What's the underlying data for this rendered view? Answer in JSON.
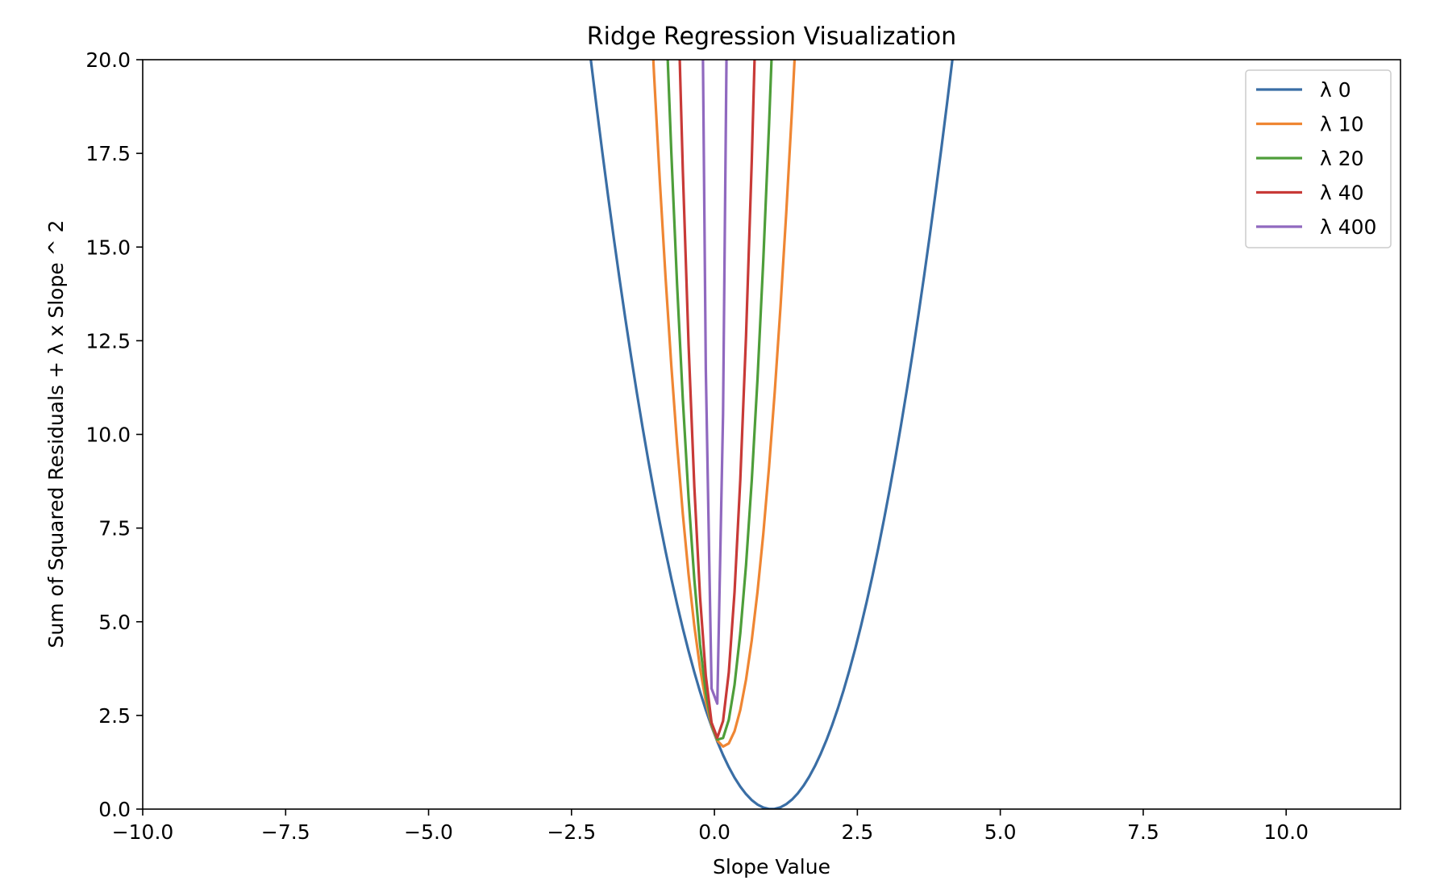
{
  "chart_data": {
    "type": "line",
    "title": "Ridge Regression Visualization",
    "xlabel": "Slope Value",
    "ylabel": "Sum of Squared Residuals + λ x Slope ^ 2",
    "xlim": [
      -10,
      12
    ],
    "ylim": [
      0,
      20
    ],
    "x_ticks": [
      -10,
      -7.5,
      -5,
      -2.5,
      0,
      2.5,
      5,
      7.5,
      10
    ],
    "x_tick_labels": [
      "−10.0",
      "−7.5",
      "−5.0",
      "−2.5",
      "0.0",
      "2.5",
      "5.0",
      "7.5",
      "10.0"
    ],
    "y_ticks": [
      0,
      2.5,
      5,
      7.5,
      10,
      12.5,
      15,
      17.5,
      20
    ],
    "y_tick_labels": [
      "0.0",
      "2.5",
      "5.0",
      "7.5",
      "10.0",
      "12.5",
      "15.0",
      "17.5",
      "20.0"
    ],
    "grid": false,
    "legend_position": "top-right",
    "x_range_plotted": [
      -10,
      10
    ],
    "series": [
      {
        "name": "λ 0",
        "lambda": 0,
        "color": "#3a6ea5",
        "curve": {
          "a": 2.0,
          "b": -4.0,
          "c": 2.0
        }
      },
      {
        "name": "λ 10",
        "lambda": 10,
        "color": "#ef8633",
        "curve": {
          "a": 12.0,
          "b": -4.0,
          "c": 2.0
        }
      },
      {
        "name": "λ 20",
        "lambda": 20,
        "color": "#4e9e3a",
        "curve": {
          "a": 22.0,
          "b": -4.0,
          "c": 2.0
        }
      },
      {
        "name": "λ 40",
        "lambda": 40,
        "color": "#c83a37",
        "curve": {
          "a": 42.0,
          "b": -4.0,
          "c": 2.0
        }
      },
      {
        "name": "λ 400",
        "lambda": 400,
        "color": "#9069bf",
        "curve": {
          "a": 402.0,
          "b": -4.0,
          "c": 2.0
        }
      }
    ]
  }
}
